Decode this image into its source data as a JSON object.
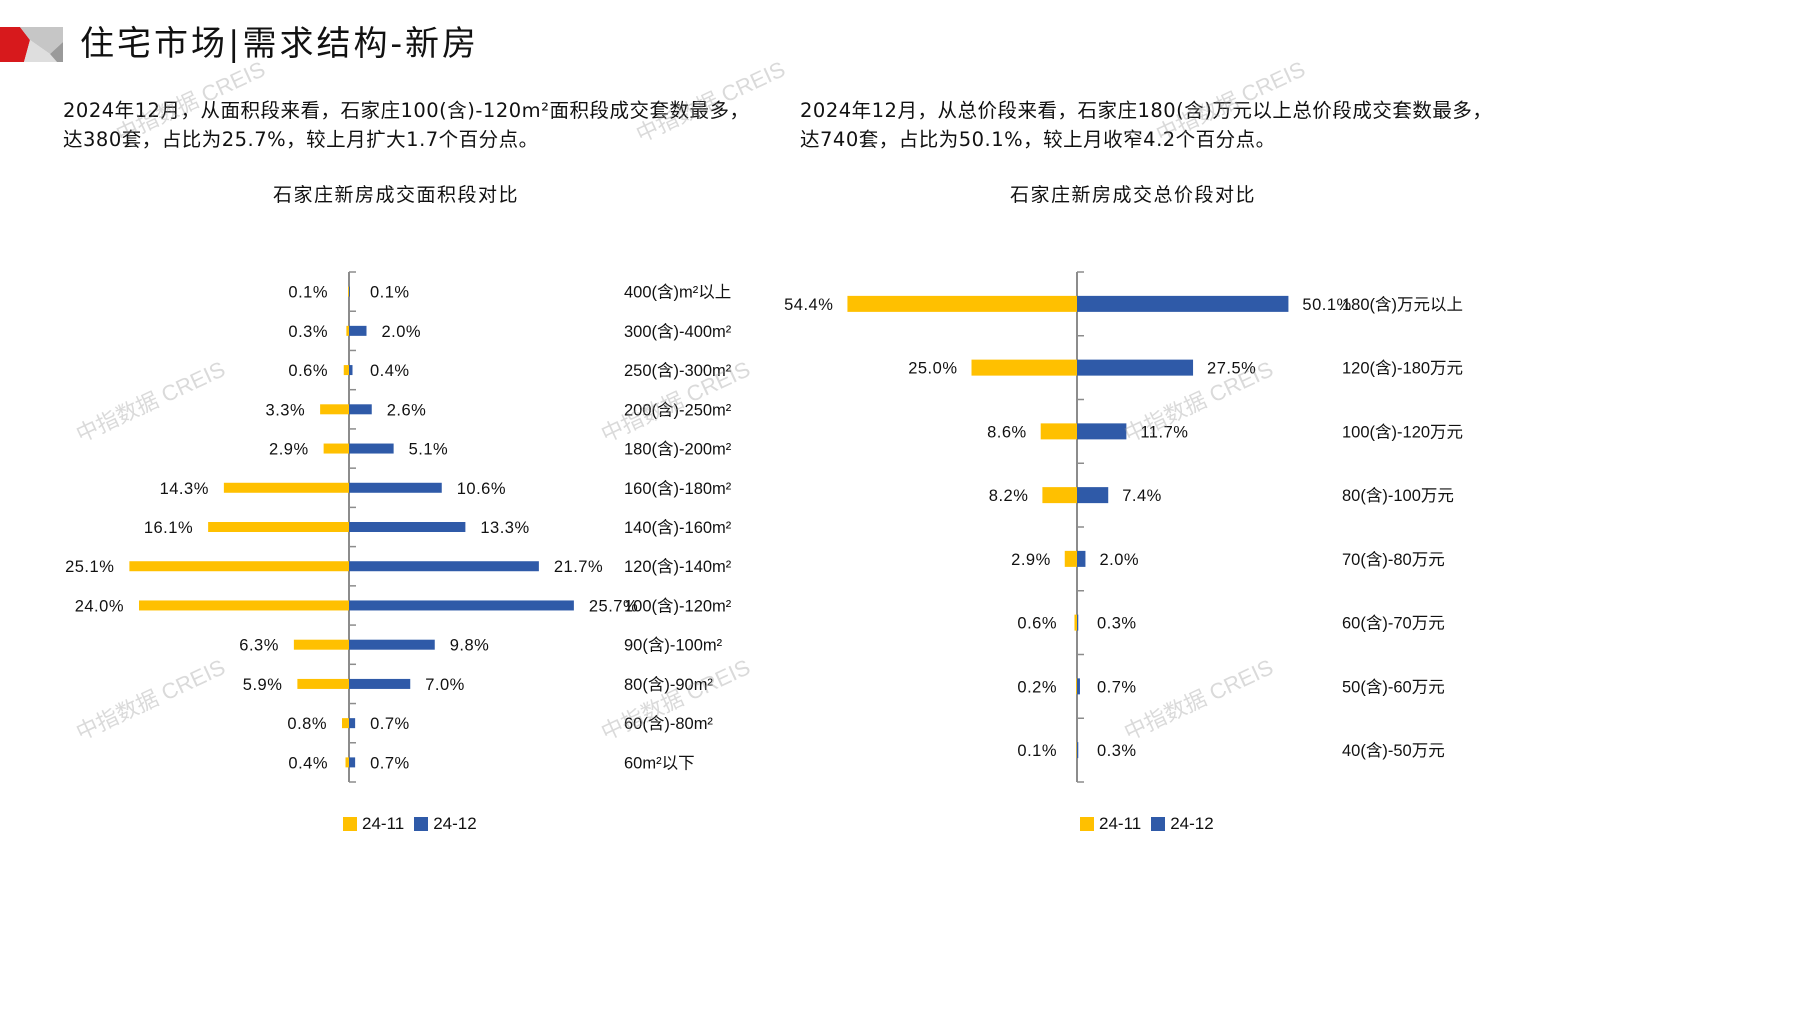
{
  "header": {
    "title": "住宅市场|需求结构-新房",
    "brand_colors": {
      "red": "#d7191c",
      "gray_light": "#c8c8c8",
      "gray_dark": "#9a9a9a"
    }
  },
  "summaries": {
    "area": "2024年12月，从面积段来看，石家庄100(含)-120m²面积段成交套数最多，达380套，占比为25.7%，较上月扩大1.7个百分点。",
    "price": "2024年12月，从总价段来看，石家庄180(含)万元以上总价段成交套数最多，达740套，占比为50.1%，较上月收窄4.2个百分点。"
  },
  "watermark_text": "中指数据 CREIS",
  "chart_data": [
    {
      "type": "bar",
      "orientation": "horizontal-butterfly",
      "title": "石家庄新房成交面积段对比",
      "categories": [
        "400(含)m²以上",
        "300(含)-400m²",
        "250(含)-300m²",
        "200(含)-250m²",
        "180(含)-200m²",
        "160(含)-180m²",
        "140(含)-160m²",
        "120(含)-140m²",
        "100(含)-120m²",
        "90(含)-100m²",
        "80(含)-90m²",
        "60(含)-80m²",
        "60m²以下"
      ],
      "series": [
        {
          "name": "24-11",
          "color": "#ffc000",
          "side": "left",
          "values": [
            0.1,
            0.3,
            0.6,
            3.3,
            2.9,
            14.3,
            16.1,
            25.1,
            24.0,
            6.3,
            5.9,
            0.8,
            0.4
          ],
          "labels": [
            "0.1%",
            "0.3%",
            "0.6%",
            "3.3%",
            "2.9%",
            "14.3%",
            "16.1%",
            "25.1%",
            "24.0%",
            "6.3%",
            "5.9%",
            "0.8%",
            "0.4%"
          ]
        },
        {
          "name": "24-12",
          "color": "#2f5aa8",
          "side": "right",
          "values": [
            0.1,
            2.0,
            0.4,
            2.6,
            5.1,
            10.6,
            13.3,
            21.7,
            25.7,
            9.8,
            7.0,
            0.7,
            0.7
          ],
          "labels": [
            "0.1%",
            "2.0%",
            "0.4%",
            "2.6%",
            "5.1%",
            "10.6%",
            "13.3%",
            "21.7%",
            "25.7%",
            "9.8%",
            "7.0%",
            "0.7%",
            "0.7%"
          ]
        }
      ],
      "unit": "%",
      "xlim": [
        -30,
        30
      ],
      "legend": "bottom",
      "grid": false
    },
    {
      "type": "bar",
      "orientation": "horizontal-butterfly",
      "title": "石家庄新房成交总价段对比",
      "categories": [
        "180(含)万元以上",
        "120(含)-180万元",
        "100(含)-120万元",
        "80(含)-100万元",
        "70(含)-80万元",
        "60(含)-70万元",
        "50(含)-60万元",
        "40(含)-50万元"
      ],
      "series": [
        {
          "name": "24-11",
          "color": "#ffc000",
          "side": "left",
          "values": [
            54.4,
            25.0,
            8.6,
            8.2,
            2.9,
            0.6,
            0.2,
            0.1
          ],
          "labels": [
            "54.4%",
            "25.0%",
            "8.6%",
            "8.2%",
            "2.9%",
            "0.6%",
            "0.2%",
            "0.1%"
          ]
        },
        {
          "name": "24-12",
          "color": "#2f5aa8",
          "side": "right",
          "values": [
            50.1,
            27.5,
            11.7,
            7.4,
            2.0,
            0.3,
            0.7,
            0.3
          ],
          "labels": [
            "50.1%",
            "27.5%",
            "11.7%",
            "7.4%",
            "2.0%",
            "0.3%",
            "0.7%",
            "0.3%"
          ]
        }
      ],
      "unit": "%",
      "xlim": [
        -60,
        60
      ],
      "legend": "bottom",
      "grid": false
    }
  ]
}
